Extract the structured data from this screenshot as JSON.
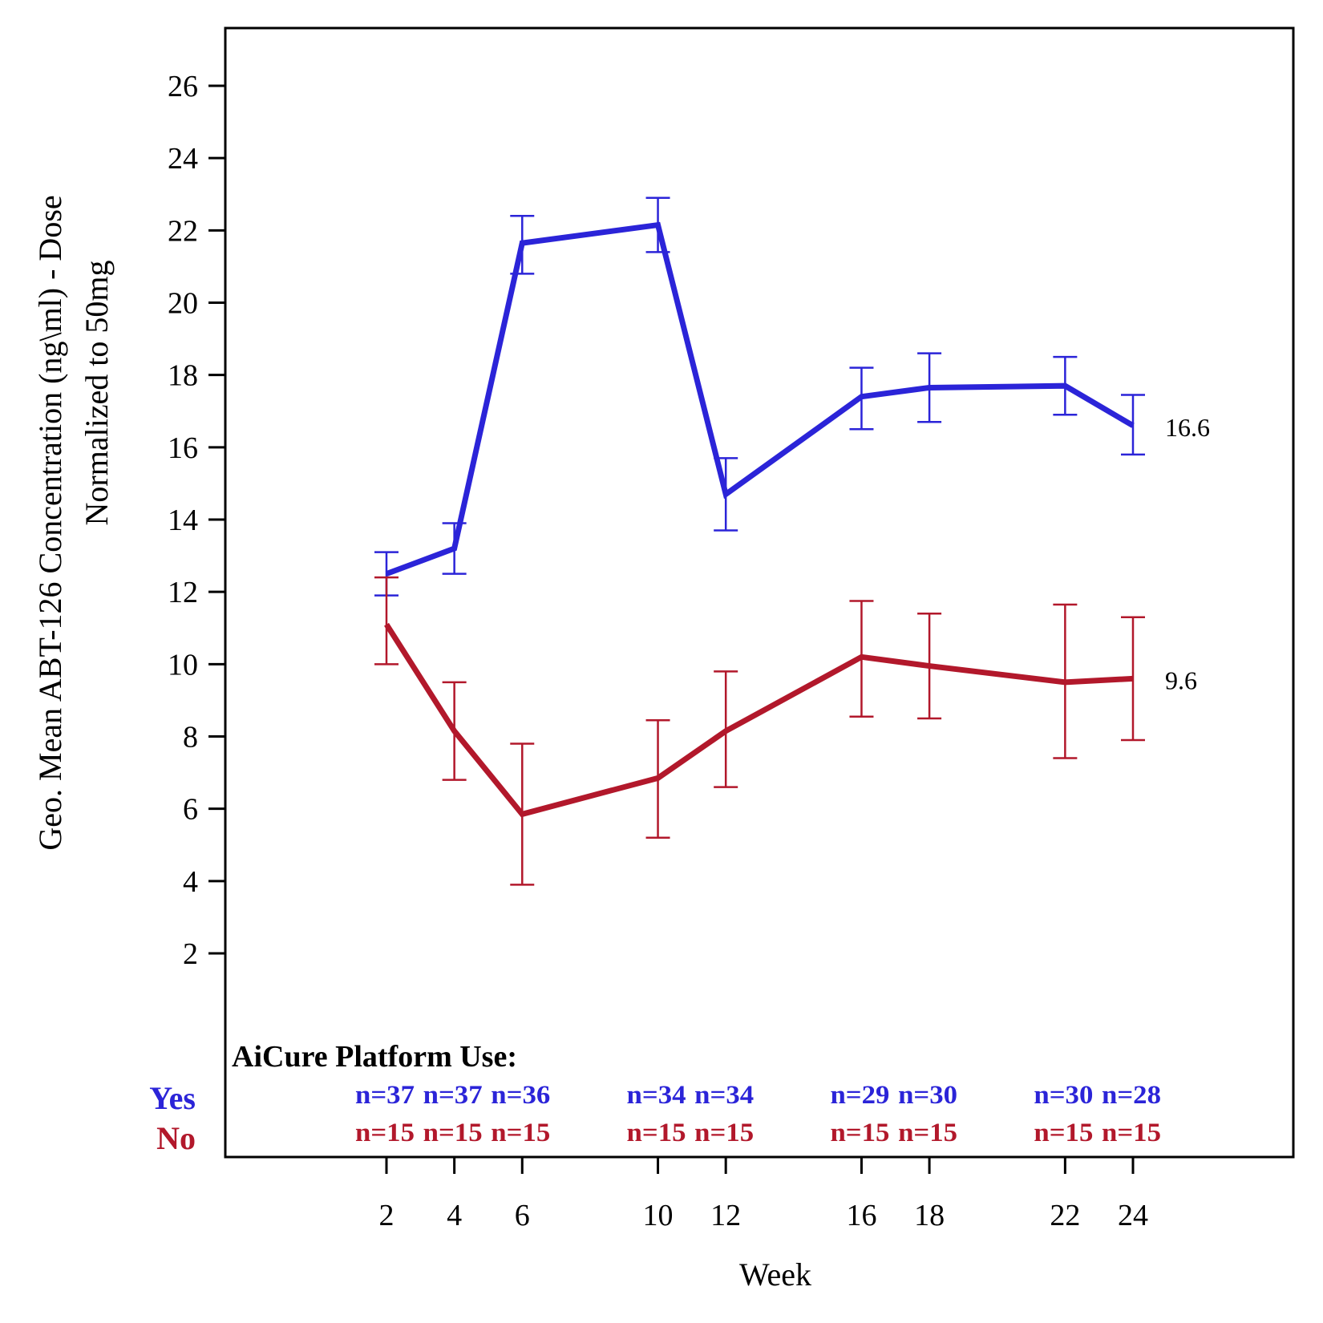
{
  "chart_data": {
    "type": "line",
    "title": "",
    "xlabel": "Week",
    "ylabel": [
      "Geo. Mean ABT-126 Concentration (ng\\ml) - Dose",
      "Normalized to 50mg"
    ],
    "x": [
      2,
      4,
      6,
      10,
      12,
      16,
      18,
      22,
      24
    ],
    "x_tick_labels": [
      "2",
      "4",
      "6",
      "10",
      "12",
      "16",
      "18",
      "22",
      "24"
    ],
    "y_ticks": [
      2,
      4,
      6,
      8,
      10,
      12,
      14,
      16,
      18,
      20,
      22,
      24,
      26
    ],
    "y_tick_labels": [
      "2",
      "4",
      "6",
      "8",
      "10",
      "12",
      "14",
      "16",
      "18",
      "20",
      "22",
      "24",
      "26"
    ],
    "xlim": [
      -2.5,
      29
    ],
    "ylim": [
      0,
      27.7
    ],
    "grid": false,
    "legend": "none",
    "series": [
      {
        "name": "Yes",
        "color": "#2b24d8",
        "values": [
          12.5,
          13.2,
          21.65,
          22.15,
          14.7,
          17.4,
          17.65,
          17.7,
          16.6
        ],
        "err_upper": [
          13.1,
          13.9,
          22.4,
          22.9,
          15.7,
          18.2,
          18.6,
          18.5,
          17.45
        ],
        "err_lower": [
          11.9,
          12.5,
          20.8,
          21.4,
          13.7,
          16.5,
          16.7,
          16.9,
          15.8
        ],
        "end_label": "16.6",
        "n": [
          "n=37",
          "n=37",
          "n=36",
          "n=34",
          "n=34",
          "n=29",
          "n=30",
          "n=30",
          "n=28"
        ]
      },
      {
        "name": "No",
        "color": "#b2182b",
        "values": [
          11.1,
          8.15,
          5.85,
          6.85,
          8.15,
          10.2,
          9.95,
          9.5,
          9.6
        ],
        "err_upper": [
          12.4,
          9.5,
          7.8,
          8.45,
          9.8,
          11.75,
          11.4,
          11.65,
          11.3
        ],
        "err_lower": [
          10.0,
          6.8,
          3.9,
          5.2,
          6.6,
          8.55,
          8.5,
          7.4,
          7.9
        ],
        "end_label": "9.6",
        "n": [
          "n=15",
          "n=15",
          "n=15",
          "n=15",
          "n=15",
          "n=15",
          "n=15",
          "n=15",
          "n=15"
        ]
      }
    ],
    "annotations": {
      "risk_table_title": "AiCure Platform Use:"
    }
  }
}
